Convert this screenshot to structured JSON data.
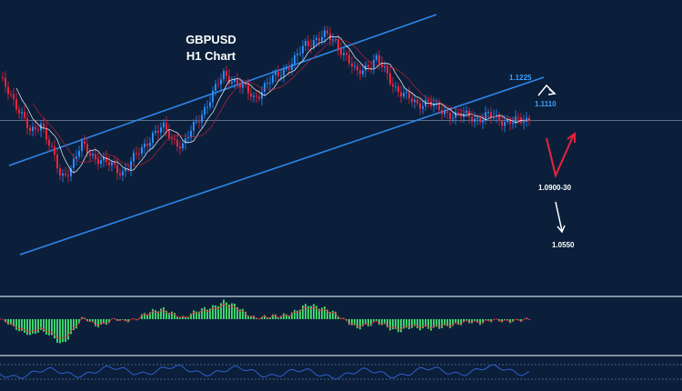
{
  "chart_data": {
    "type": "line",
    "title": "GBPUSD",
    "subtitle": "H1 Chart",
    "series": [
      {
        "values": [
          1.126,
          1.122,
          1.115,
          1.108,
          1.112,
          1.103,
          1.093,
          1.097,
          1.104,
          1.101,
          1.099,
          1.097,
          1.095,
          1.099,
          1.103,
          1.108,
          1.11,
          1.106,
          1.104,
          1.11,
          1.116,
          1.122,
          1.128,
          1.126,
          1.123,
          1.12,
          1.124,
          1.127,
          1.13,
          1.133,
          1.138,
          1.14,
          1.141,
          1.139,
          1.134,
          1.128,
          1.131,
          1.133,
          1.128,
          1.123,
          1.12,
          1.118,
          1.119,
          1.116,
          1.115,
          1.114,
          1.114,
          1.113,
          1.114,
          1.113,
          1.112,
          1.112,
          1.113
        ]
      }
    ],
    "levels": {
      "upper": "1.1225",
      "mid": "1.1110",
      "low1": "1.0900-30",
      "low2": "1.0550"
    },
    "reference_level": 1.1125,
    "ylim": [
      1.055,
      1.15
    ]
  },
  "colors": {
    "background": "#0b1f3a",
    "channel": "#2e86e8",
    "bull": "#2a8cff",
    "bear": "#e8243c",
    "macd_hist": "#3fd06a",
    "rsi_line": "#2f5fd0",
    "arrow_red": "#e8243c",
    "arrow_white": "#ffffff"
  }
}
